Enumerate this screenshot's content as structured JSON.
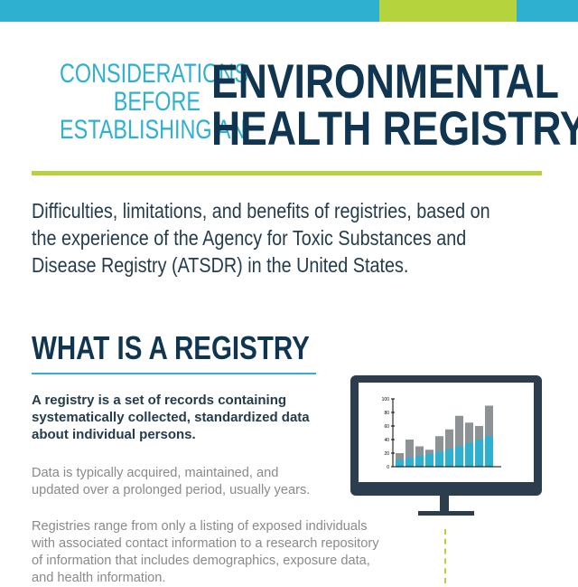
{
  "colors": {
    "blue": "#2eb0d0",
    "green": "#b5d33d",
    "navy": "#0f3550",
    "monitor": "#2c3e4e",
    "gray_bar": "#8c9296"
  },
  "header": {
    "kicker_lines": [
      "CONSIDERATIONS",
      "BEFORE",
      "ESTABLISHING AN"
    ],
    "title_lines": [
      "ENVIRONMENTAL",
      "HEALTH REGISTRY"
    ]
  },
  "subtitle_lines": [
    "Difficulties, limitations, and benefits of registries, based on",
    "the experience of the Agency for Toxic Substances and",
    "Disease Registry (ATSDR) in the United States."
  ],
  "section": {
    "heading": "WHAT IS A REGISTRY",
    "definition_lines": [
      "A registry is a set of records containing",
      "systematically collected, standardized data",
      "about individual persons."
    ],
    "para1_lines": [
      "Data is typically acquired, maintained, and",
      "updated over a prolonged period, usually years."
    ],
    "para2_lines": [
      "Registries range from only a listing of exposed individuals",
      "with associated contact information to a research repository",
      "of information that includes demographics, exposure data,",
      "and health information."
    ]
  },
  "chart_data": {
    "type": "bar",
    "ylim": [
      0,
      100
    ],
    "yticks": [
      "0",
      "20",
      "40",
      "60",
      "80",
      "100"
    ],
    "totals": [
      20,
      40,
      30,
      25,
      45,
      55,
      75,
      65,
      60,
      90
    ],
    "highlight": [
      10,
      13,
      16,
      19,
      22,
      26,
      30,
      35,
      40,
      45
    ]
  }
}
